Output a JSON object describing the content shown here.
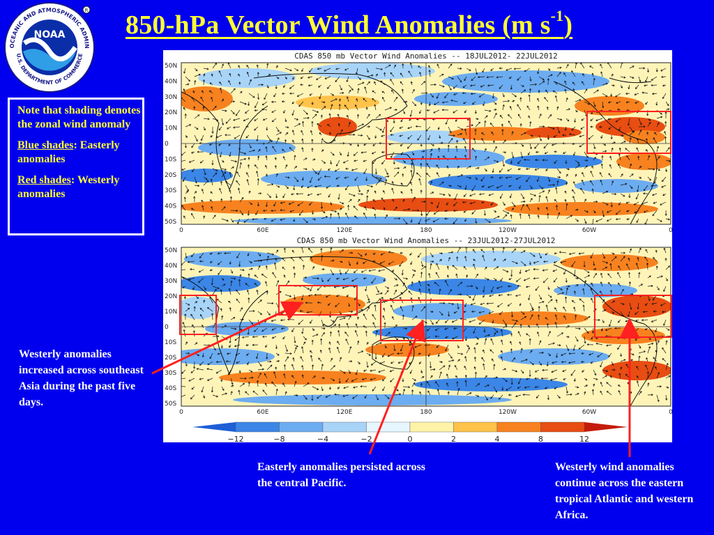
{
  "title": {
    "main": "850-hPa Vector Wind Anomalies  (m s",
    "sup": "-1",
    "close": ")"
  },
  "logo": {
    "outer_text": "NATIONAL OCEANIC AND ATMOSPHERIC ADMINISTRATION",
    "bottom_text": "U.S. DEPARTMENT OF COMMERCE",
    "center": "NOAA"
  },
  "note": {
    "line1": "Note that shading denotes the zonal wind anomaly",
    "blue_label": "Blue shades",
    "blue_text": ": Easterly anomalies",
    "red_label": "Red shades",
    "red_text": ": Westerly anomalies"
  },
  "maps": [
    {
      "title": "CDAS 850 mb Vector Wind Anomalies -- 18JUL2012- 22JUL2012"
    },
    {
      "title": "CDAS 850 mb Vector Wind Anomalies -- 23JUL2012-27JUL2012"
    }
  ],
  "lat_labels": [
    "50N",
    "40N",
    "30N",
    "20N",
    "10N",
    "0",
    "10S",
    "20S",
    "30S",
    "40S",
    "50S"
  ],
  "lon_labels": [
    "0",
    "60E",
    "120E",
    "180",
    "120W",
    "60W",
    "0"
  ],
  "colorbar": {
    "ticks": [
      "−12",
      "−8",
      "−4",
      "−2",
      "0",
      "2",
      "4",
      "8",
      "12"
    ],
    "colors": [
      "#1d5fd6",
      "#3b86e6",
      "#6cacf0",
      "#a8d4f8",
      "#e6f6ff",
      "#fff3a8",
      "#ffc24a",
      "#f7821f",
      "#e84d12",
      "#c41c0c"
    ]
  },
  "captions": {
    "left": "Westerly anomalies increased across southeast Asia during the past five days.",
    "center": "Easterly anomalies persisted across the central Pacific.",
    "right": "Westerly wind anomalies continue across the eastern tropical Atlantic and western Africa."
  },
  "colors": {
    "background": "#0000ee",
    "title": "#ffff33",
    "note_text": "#ffff33",
    "caption": "#ffffff",
    "highlight_box": "#ff2020"
  }
}
